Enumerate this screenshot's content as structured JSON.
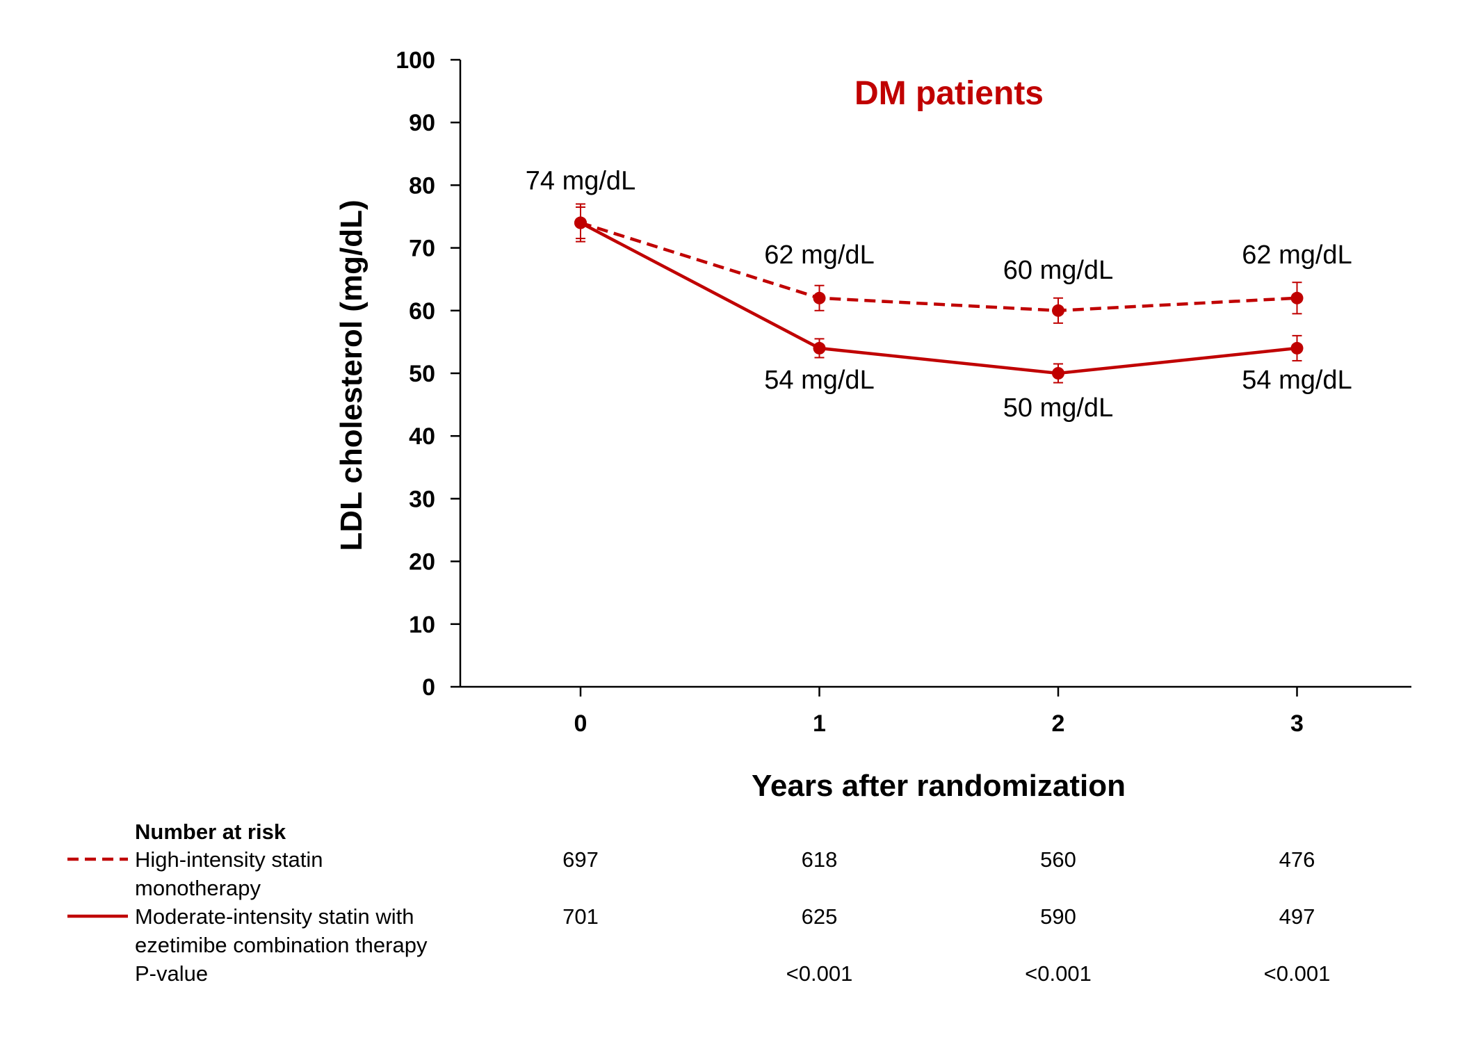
{
  "chart_data": {
    "type": "line",
    "title": "DM patients",
    "xlabel": "Years after randomization",
    "ylabel": "LDL cholesterol (mg/dL)",
    "x": [
      0,
      1,
      2,
      3
    ],
    "x_tick_labels": [
      "0",
      "1",
      "2",
      "3"
    ],
    "ylim": [
      0,
      100
    ],
    "y_ticks": [
      0,
      10,
      20,
      30,
      40,
      50,
      60,
      70,
      80,
      90,
      100
    ],
    "grid": false,
    "colors": {
      "series": "#c00000",
      "title": "#c00000"
    },
    "series": [
      {
        "name": "High-intensity statin monotherapy",
        "style": "dashed",
        "values": [
          74,
          62,
          60,
          62
        ],
        "error": [
          3,
          2,
          2,
          2.5
        ],
        "labels": [
          "74 mg/dL",
          "62 mg/dL",
          "60 mg/dL",
          "62 mg/dL"
        ]
      },
      {
        "name": "Moderate-intensity statin with ezetimibe combination therapy",
        "style": "solid",
        "values": [
          74,
          54,
          50,
          54
        ],
        "error": [
          2.5,
          1.5,
          1.5,
          2
        ],
        "labels": [
          "",
          "54 mg/dL",
          "50 mg/dL",
          "54 mg/dL"
        ]
      }
    ]
  },
  "risk_table": {
    "header": "Number at risk",
    "rows": [
      {
        "label_lines": [
          "High-intensity statin",
          "monotherapy"
        ],
        "style": "dashed",
        "values": [
          "697",
          "618",
          "560",
          "476"
        ]
      },
      {
        "label_lines": [
          "Moderate-intensity statin with",
          "ezetimibe combination therapy"
        ],
        "style": "solid",
        "values": [
          "701",
          "625",
          "590",
          "497"
        ]
      }
    ],
    "pvalue_label": "P-value",
    "pvalues": [
      "",
      "<0.001",
      "<0.001",
      "<0.001"
    ]
  }
}
